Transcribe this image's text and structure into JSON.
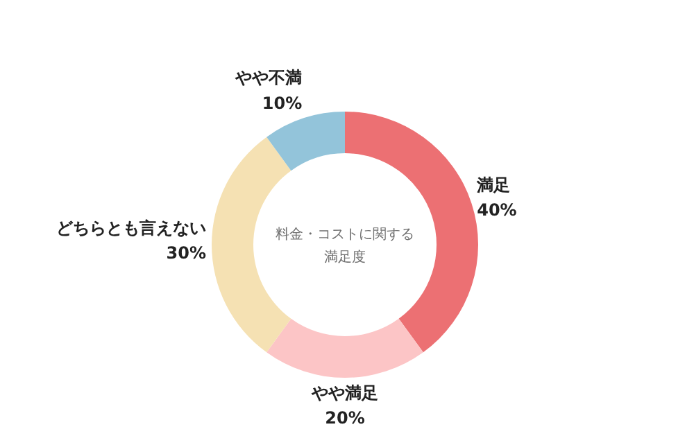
{
  "chart_data": {
    "type": "donut",
    "title": "料金・コストに関する満足度",
    "categories": [
      "満足",
      "やや満足",
      "どちらとも言えない",
      "やや不満"
    ],
    "values": [
      40,
      20,
      30,
      10
    ],
    "value_labels": [
      "40%",
      "20%",
      "30%",
      "10%"
    ],
    "colors": [
      "#ec7073",
      "#fcc5c6",
      "#f5e1b3",
      "#93c4da"
    ]
  }
}
